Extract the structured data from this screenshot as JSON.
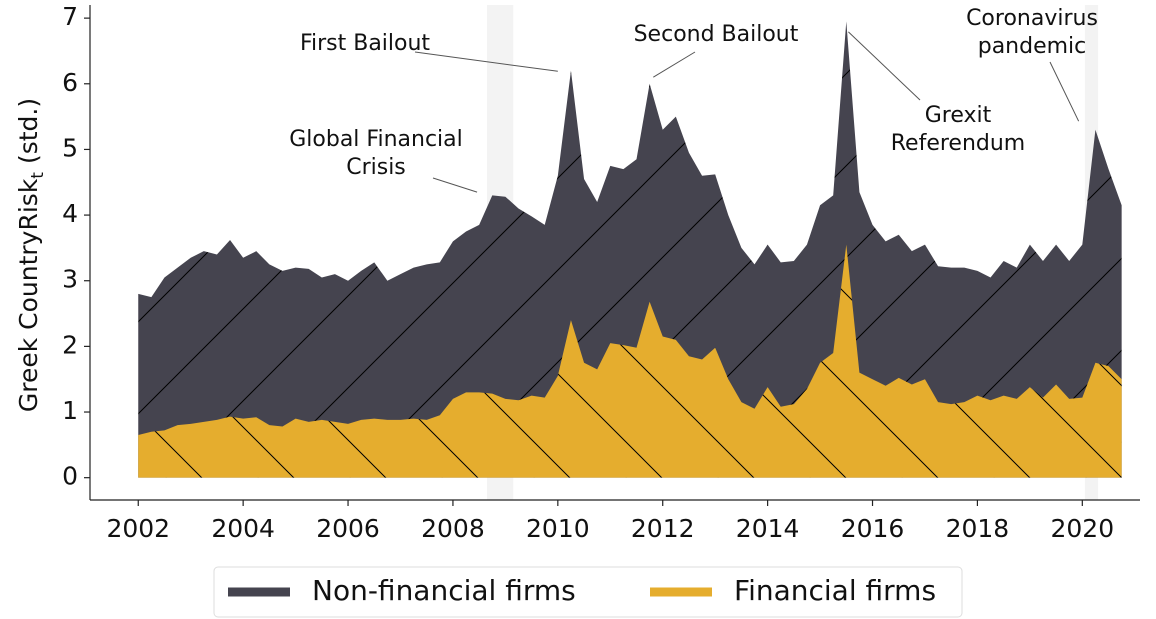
{
  "chart_data": {
    "type": "area",
    "ylabel": "Greek CountryRisk",
    "ylabel_subscript": "t",
    "ylabel_suffix": "(std.)",
    "x": [
      2002,
      2002.25,
      2002.5,
      2002.75,
      2003,
      2003.25,
      2003.5,
      2003.75,
      2004,
      2004.25,
      2004.5,
      2004.75,
      2005,
      2005.25,
      2005.5,
      2005.75,
      2006,
      2006.25,
      2006.5,
      2006.75,
      2007,
      2007.25,
      2007.5,
      2007.75,
      2008,
      2008.25,
      2008.5,
      2008.75,
      2009,
      2009.25,
      2009.5,
      2009.75,
      2010,
      2010.25,
      2010.5,
      2010.75,
      2011,
      2011.25,
      2011.5,
      2011.75,
      2012,
      2012.25,
      2012.5,
      2012.75,
      2013,
      2013.25,
      2013.5,
      2013.75,
      2014,
      2014.25,
      2014.5,
      2014.75,
      2015,
      2015.25,
      2015.5,
      2015.75,
      2016,
      2016.25,
      2016.5,
      2016.75,
      2017,
      2017.25,
      2017.5,
      2017.75,
      2018,
      2018.25,
      2018.5,
      2018.75,
      2019,
      2019.25,
      2019.5,
      2019.75,
      2020,
      2020.25,
      2020.5,
      2020.75
    ],
    "series": [
      {
        "name": "Non-financial firms",
        "color": "#45444f",
        "hatch": "/",
        "values": [
          2.8,
          2.75,
          3.05,
          3.2,
          3.35,
          3.45,
          3.4,
          3.62,
          3.35,
          3.45,
          3.25,
          3.15,
          3.2,
          3.18,
          3.05,
          3.1,
          3.0,
          3.15,
          3.28,
          3.0,
          3.1,
          3.2,
          3.25,
          3.28,
          3.6,
          3.75,
          3.85,
          4.3,
          4.28,
          4.1,
          3.98,
          3.85,
          4.6,
          6.2,
          4.55,
          4.2,
          4.75,
          4.7,
          4.85,
          6.0,
          5.3,
          5.5,
          4.95,
          4.6,
          4.62,
          4.0,
          3.5,
          3.25,
          3.55,
          3.28,
          3.3,
          3.55,
          4.15,
          4.3,
          6.95,
          4.35,
          3.85,
          3.6,
          3.7,
          3.45,
          3.55,
          3.22,
          3.2,
          3.2,
          3.15,
          3.05,
          3.3,
          3.2,
          3.55,
          3.3,
          3.55,
          3.3,
          3.55,
          5.3,
          4.7,
          4.15
        ]
      },
      {
        "name": "Financial firms",
        "color": "#e5ad2e",
        "hatch": "\\",
        "values": [
          0.65,
          0.7,
          0.72,
          0.8,
          0.82,
          0.85,
          0.88,
          0.93,
          0.9,
          0.92,
          0.8,
          0.78,
          0.9,
          0.85,
          0.88,
          0.85,
          0.82,
          0.88,
          0.9,
          0.88,
          0.88,
          0.9,
          0.88,
          0.95,
          1.2,
          1.3,
          1.3,
          1.28,
          1.2,
          1.18,
          1.25,
          1.22,
          1.55,
          2.4,
          1.75,
          1.65,
          2.05,
          2.02,
          1.98,
          2.68,
          2.15,
          2.1,
          1.85,
          1.8,
          1.98,
          1.5,
          1.15,
          1.05,
          1.38,
          1.08,
          1.12,
          1.35,
          1.75,
          1.9,
          3.55,
          1.6,
          1.5,
          1.4,
          1.52,
          1.42,
          1.5,
          1.15,
          1.12,
          1.15,
          1.25,
          1.18,
          1.25,
          1.2,
          1.38,
          1.22,
          1.42,
          1.2,
          1.22,
          1.75,
          1.7,
          1.5
        ]
      }
    ],
    "shaded_spans": [
      [
        2008.65,
        2009.15
      ],
      [
        2020.05,
        2020.3
      ]
    ],
    "shade_color": "#f3f3f3",
    "annotations": [
      {
        "lines": [
          "First Bailout"
        ],
        "x": 2010.0,
        "y": 6.19
      },
      {
        "lines": [
          "Second Bailout"
        ],
        "x": 2011.82,
        "y": 6.1
      },
      {
        "lines": [
          "Global Financial",
          "Crisis"
        ],
        "x": 2008.46,
        "y": 4.35
      },
      {
        "lines": [
          "Grexit",
          "Referendum"
        ],
        "x": 2015.54,
        "y": 6.79
      },
      {
        "lines": [
          "Coronavirus",
          "pandemic"
        ],
        "x": 2019.93,
        "y": 5.43
      }
    ],
    "xlim": [
      2001.08,
      2021.1
    ],
    "ylim": [
      -0.34,
      7.2
    ],
    "xticks": [
      2002,
      2004,
      2006,
      2008,
      2010,
      2012,
      2014,
      2016,
      2018,
      2020
    ],
    "yticks": [
      0,
      1,
      2,
      3,
      4,
      5,
      6,
      7
    ],
    "legend": "bottom"
  }
}
